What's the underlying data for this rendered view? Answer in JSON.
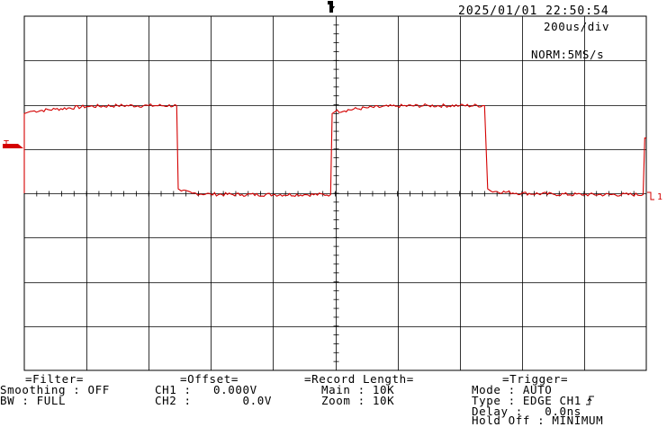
{
  "header": {
    "datetime": "2025/01/01 22:50:54",
    "timebase": "200us/div",
    "acq_mode": "NORM:5MS/s"
  },
  "markers": {
    "trigger_icon": "trigger-position-marker",
    "trigger_level_label": "T",
    "ch1_label": "1"
  },
  "colors": {
    "trace": "#d40000",
    "grid": "#000000",
    "background": "#ffffff"
  },
  "chart_data": {
    "type": "line",
    "title": "",
    "xlabel": "",
    "ylabel": "",
    "x_unit": "us",
    "x_divisions": 10,
    "y_divisions": 8,
    "xlim": [
      0,
      2000
    ],
    "ylim_div": [
      -4,
      4
    ],
    "series": [
      {
        "channel": "CH1",
        "color": "#d40000",
        "x": [
          0,
          0,
          20,
          100,
          200,
          300,
          400,
          490,
          495,
          505,
          540,
          600,
          700,
          800,
          900,
          985,
          990,
          1000,
          1100,
          1200,
          1300,
          1400,
          1480,
          1490,
          1500,
          1600,
          1700,
          1800,
          1990,
          1995,
          2000
        ],
        "y_div": [
          0.0,
          1.8,
          1.85,
          1.9,
          1.96,
          1.98,
          1.98,
          1.98,
          0.1,
          0.05,
          0.0,
          -0.02,
          -0.03,
          -0.03,
          -0.03,
          -0.03,
          1.8,
          1.85,
          1.93,
          1.97,
          1.98,
          1.98,
          1.98,
          0.1,
          0.05,
          0.0,
          -0.02,
          -0.03,
          -0.03,
          1.25,
          1.25
        ]
      }
    ]
  },
  "info": {
    "filter": {
      "heading": "=Filter=",
      "smoothing": "Smoothing : OFF",
      "bw": "BW : FULL"
    },
    "offset": {
      "heading": "=Offset=",
      "ch1": "CH1 :   0.000V",
      "ch2": "CH2 :       0.0V"
    },
    "record": {
      "heading": "=Record Length=",
      "main": "Main : 10K",
      "zoom": "Zoom : 10K"
    },
    "trigger": {
      "heading": "=Trigger=",
      "mode": "Mode : AUTO",
      "type": "Type : EDGE CH1",
      "delay": "Delay :   0.0ns",
      "holdoff": "Hold Off : MINIMUM"
    }
  }
}
